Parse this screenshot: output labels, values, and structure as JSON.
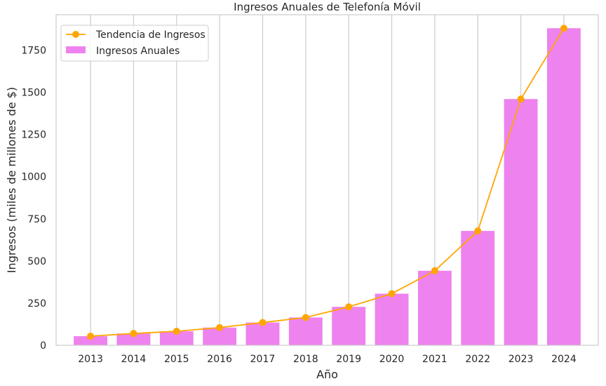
{
  "chart_data": {
    "type": "bar",
    "title": "Ingresos Anuales de Telefonía Móvil",
    "xlabel": "Año",
    "ylabel": "Ingresos (miles de millones de $)",
    "categories": [
      "2013",
      "2014",
      "2015",
      "2016",
      "2017",
      "2018",
      "2019",
      "2020",
      "2021",
      "2022",
      "2023",
      "2024"
    ],
    "ylim": [
      0,
      1960
    ],
    "yticks": [
      0,
      250,
      500,
      750,
      1000,
      1250,
      1500,
      1750
    ],
    "grid": "vertical",
    "legend_position": "top-left",
    "series": [
      {
        "name": "Ingresos Anuales",
        "kind": "bar",
        "color": "#ee82ee",
        "values": [
          54,
          70,
          83,
          105,
          135,
          165,
          228,
          306,
          442,
          678,
          1460,
          1880
        ]
      },
      {
        "name": "Tendencia de Ingresos",
        "kind": "line",
        "color": "#ffa500",
        "values": [
          54,
          70,
          83,
          105,
          135,
          165,
          228,
          306,
          442,
          678,
          1460,
          1880
        ]
      }
    ]
  }
}
